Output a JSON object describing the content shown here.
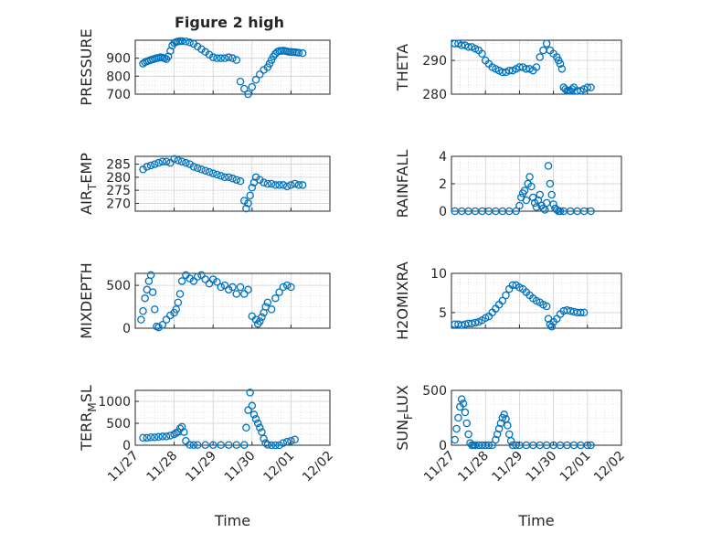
{
  "figure": {
    "title": "Figure 2 high",
    "x_tick_labels": [
      "11/27",
      "11/28",
      "11/29",
      "11/30",
      "12/01",
      "12/02"
    ],
    "xlabel": "Time"
  },
  "colors": {
    "marker": "#0072BD",
    "axis": "#262626",
    "grid": "#d0d0d0"
  },
  "chart_data": [
    {
      "type": "scatter",
      "title": "Figure 2 high",
      "ylabel": "PRESSURE",
      "ylabel_sub": "",
      "ylabel_tail": "",
      "ylim": [
        700,
        1000
      ],
      "yticks": [
        700,
        800,
        900
      ],
      "xticks_visible": false,
      "xlabel": "",
      "x": [
        0.2,
        0.25,
        0.3,
        0.35,
        0.4,
        0.45,
        0.5,
        0.55,
        0.6,
        0.65,
        0.7,
        0.75,
        0.8,
        0.85,
        0.9,
        0.95,
        1.0,
        1.05,
        1.1,
        1.15,
        1.2,
        1.3,
        1.4,
        1.5,
        1.6,
        1.7,
        1.8,
        1.9,
        2.0,
        2.1,
        2.2,
        2.3,
        2.4,
        2.5,
        2.6,
        2.7,
        2.8,
        2.9,
        3.0,
        3.1,
        3.2,
        3.3,
        3.4,
        3.45,
        3.5,
        3.55,
        3.6,
        3.65,
        3.7,
        3.75,
        3.8,
        3.85,
        3.9,
        3.95,
        4.0,
        4.05,
        4.1,
        4.15,
        4.2,
        4.3
      ],
      "y": [
        870,
        878,
        882,
        886,
        890,
        893,
        897,
        900,
        902,
        905,
        903,
        900,
        895,
        910,
        940,
        970,
        985,
        990,
        993,
        995,
        995,
        993,
        988,
        980,
        965,
        950,
        935,
        920,
        905,
        900,
        900,
        900,
        905,
        900,
        890,
        770,
        730,
        700,
        740,
        780,
        810,
        835,
        850,
        870,
        890,
        910,
        925,
        935,
        940,
        940,
        942,
        940,
        938,
        935,
        935,
        934,
        933,
        932,
        930,
        928
      ],
      "note": ""
    },
    {
      "type": "scatter",
      "title": "",
      "ylabel": "THETA",
      "ylabel_sub": "",
      "ylabel_tail": "",
      "ylim": [
        280,
        296
      ],
      "yticks": [
        280,
        290
      ],
      "xticks_visible": false,
      "xlabel": "",
      "x": [
        0.1,
        0.2,
        0.3,
        0.4,
        0.5,
        0.6,
        0.7,
        0.8,
        0.9,
        1.0,
        1.1,
        1.2,
        1.3,
        1.4,
        1.5,
        1.6,
        1.7,
        1.8,
        1.9,
        2.0,
        2.1,
        2.2,
        2.3,
        2.4,
        2.5,
        2.6,
        2.7,
        2.8,
        2.9,
        3.0,
        3.1,
        3.15,
        3.2,
        3.25,
        3.3,
        3.35,
        3.4,
        3.45,
        3.5,
        3.55,
        3.6,
        3.7,
        3.8,
        3.9,
        4.0,
        4.1
      ],
      "y": [
        295,
        295,
        294.5,
        294.5,
        294,
        294,
        293.5,
        293,
        292,
        290,
        289,
        288,
        287.5,
        287,
        286.5,
        286.5,
        287,
        287,
        287.5,
        288,
        288,
        287.5,
        287.5,
        287,
        288,
        291,
        293,
        295,
        293,
        292,
        291,
        290,
        289,
        287.5,
        282,
        281.5,
        281,
        281,
        281,
        281.5,
        282,
        281,
        281,
        281.5,
        282,
        282
      ],
      "note": ""
    },
    {
      "type": "scatter",
      "title": "",
      "ylabel": "AIR",
      "ylabel_sub": "T",
      "ylabel_tail": "EMP",
      "ylim": [
        267,
        288
      ],
      "yticks": [
        270,
        275,
        280,
        285
      ],
      "xticks_visible": false,
      "xlabel": "",
      "x": [
        0.2,
        0.3,
        0.4,
        0.5,
        0.6,
        0.7,
        0.8,
        0.9,
        1.0,
        1.1,
        1.2,
        1.3,
        1.4,
        1.5,
        1.6,
        1.7,
        1.8,
        1.9,
        2.0,
        2.1,
        2.2,
        2.3,
        2.4,
        2.5,
        2.6,
        2.7,
        2.8,
        2.85,
        2.9,
        2.95,
        3.0,
        3.05,
        3.1,
        3.2,
        3.3,
        3.4,
        3.5,
        3.6,
        3.7,
        3.8,
        3.9,
        4.0,
        4.1,
        4.2,
        4.3
      ],
      "y": [
        283,
        284,
        284.5,
        285,
        285.5,
        286,
        286,
        285.5,
        287,
        286.5,
        286,
        285.5,
        285,
        284,
        283.5,
        283,
        282.5,
        282,
        281.5,
        281,
        280.5,
        280,
        280,
        279.5,
        279,
        278.5,
        271,
        268,
        270,
        273,
        276,
        278,
        280,
        279,
        278,
        277.5,
        277.5,
        277,
        277,
        277,
        276.5,
        277,
        277.5,
        277,
        277
      ],
      "note": ""
    },
    {
      "type": "scatter",
      "title": "",
      "ylabel": "RAINFALL",
      "ylabel_sub": "",
      "ylabel_tail": "",
      "ylim": [
        0,
        4
      ],
      "yticks": [
        0,
        2,
        4
      ],
      "xticks_visible": false,
      "xlabel": "",
      "x": [
        0.1,
        0.3,
        0.5,
        0.7,
        0.9,
        1.1,
        1.3,
        1.5,
        1.7,
        1.9,
        2.0,
        2.05,
        2.1,
        2.15,
        2.2,
        2.25,
        2.3,
        2.35,
        2.4,
        2.45,
        2.5,
        2.55,
        2.6,
        2.65,
        2.7,
        2.75,
        2.8,
        2.85,
        2.9,
        2.95,
        3.0,
        3.05,
        3.1,
        3.15,
        3.2,
        3.3,
        3.5,
        3.7,
        3.9,
        4.1
      ],
      "y": [
        0,
        0,
        0,
        0,
        0,
        0,
        0,
        0,
        0,
        0,
        0.4,
        1.0,
        1.3,
        1.5,
        0.8,
        2.0,
        2.5,
        1.8,
        1.0,
        0.6,
        0.3,
        0.8,
        1.2,
        0.4,
        0.2,
        0.1,
        0.6,
        3.3,
        2.0,
        1.2,
        0.5,
        0.2,
        0.1,
        0,
        0,
        0,
        0,
        0,
        0,
        0
      ],
      "note": ""
    },
    {
      "type": "scatter",
      "title": "",
      "ylabel": "MIXDEPTH",
      "ylabel_sub": "",
      "ylabel_tail": "",
      "ylim": [
        0,
        640
      ],
      "yticks": [
        0,
        500
      ],
      "xticks_visible": false,
      "xlabel": "",
      "x": [
        0.15,
        0.2,
        0.25,
        0.3,
        0.35,
        0.4,
        0.45,
        0.5,
        0.55,
        0.6,
        0.7,
        0.8,
        0.9,
        1.0,
        1.05,
        1.1,
        1.15,
        1.2,
        1.3,
        1.4,
        1.5,
        1.6,
        1.7,
        1.8,
        1.9,
        2.0,
        2.1,
        2.2,
        2.3,
        2.4,
        2.5,
        2.6,
        2.7,
        2.8,
        2.9,
        3.0,
        3.1,
        3.15,
        3.2,
        3.25,
        3.3,
        3.35,
        3.4,
        3.5,
        3.6,
        3.7,
        3.8,
        3.9,
        4.0
      ],
      "y": [
        100,
        200,
        350,
        450,
        550,
        620,
        420,
        220,
        20,
        10,
        40,
        100,
        150,
        180,
        220,
        300,
        400,
        550,
        620,
        580,
        550,
        600,
        620,
        570,
        520,
        570,
        540,
        480,
        500,
        450,
        480,
        400,
        480,
        400,
        450,
        140,
        100,
        50,
        80,
        130,
        180,
        250,
        300,
        220,
        350,
        420,
        480,
        500,
        480
      ],
      "note": ""
    },
    {
      "type": "scatter",
      "title": "",
      "ylabel": "H2OMIXRA",
      "ylabel_sub": "",
      "ylabel_tail": "",
      "ylim": [
        3,
        10
      ],
      "yticks": [
        5,
        10
      ],
      "xticks_visible": false,
      "xlabel": "",
      "x": [
        0.1,
        0.2,
        0.3,
        0.4,
        0.5,
        0.6,
        0.7,
        0.8,
        0.9,
        1.0,
        1.1,
        1.2,
        1.3,
        1.4,
        1.5,
        1.6,
        1.7,
        1.8,
        1.9,
        2.0,
        2.1,
        2.2,
        2.3,
        2.4,
        2.5,
        2.6,
        2.7,
        2.8,
        2.85,
        2.9,
        2.95,
        3.0,
        3.1,
        3.2,
        3.3,
        3.4,
        3.5,
        3.6,
        3.7,
        3.8,
        3.9
      ],
      "y": [
        3.5,
        3.5,
        3.4,
        3.5,
        3.6,
        3.6,
        3.7,
        3.8,
        4.0,
        4.3,
        4.5,
        5.0,
        5.5,
        6.0,
        6.5,
        7.2,
        8.0,
        8.5,
        8.5,
        8.2,
        8.0,
        7.6,
        7.2,
        6.8,
        6.5,
        6.3,
        6.0,
        5.8,
        4.2,
        3.5,
        3.2,
        3.8,
        4.2,
        4.8,
        5.2,
        5.3,
        5.2,
        5.1,
        5.0,
        5.0,
        5.0
      ],
      "note": ""
    },
    {
      "type": "scatter",
      "title": "",
      "ylabel": "TERR",
      "ylabel_sub": "M",
      "ylabel_tail": "SL",
      "ylim": [
        0,
        1250
      ],
      "yticks": [
        0,
        500,
        1000
      ],
      "xticks_visible": true,
      "xlabel": "Time",
      "x": [
        0.2,
        0.3,
        0.4,
        0.5,
        0.6,
        0.7,
        0.8,
        0.9,
        1.0,
        1.05,
        1.1,
        1.15,
        1.2,
        1.25,
        1.3,
        1.4,
        1.5,
        1.6,
        1.8,
        2.0,
        2.2,
        2.4,
        2.6,
        2.8,
        2.85,
        2.9,
        2.95,
        3.0,
        3.05,
        3.1,
        3.15,
        3.2,
        3.25,
        3.3,
        3.35,
        3.4,
        3.5,
        3.6,
        3.7,
        3.8,
        3.9,
        4.0,
        4.1
      ],
      "y": [
        170,
        170,
        180,
        180,
        190,
        200,
        200,
        220,
        250,
        280,
        300,
        380,
        420,
        300,
        100,
        10,
        5,
        5,
        5,
        5,
        5,
        5,
        5,
        5,
        400,
        800,
        1200,
        900,
        700,
        600,
        500,
        400,
        300,
        150,
        50,
        10,
        0,
        0,
        0,
        50,
        80,
        100,
        130
      ],
      "note": ""
    },
    {
      "type": "scatter",
      "title": "",
      "ylabel": "SUN",
      "ylabel_sub": "F",
      "ylabel_tail": "LUX",
      "ylim": [
        0,
        500
      ],
      "yticks": [
        0,
        500
      ],
      "xticks_visible": true,
      "xlabel": "Time",
      "x": [
        0.1,
        0.15,
        0.2,
        0.25,
        0.3,
        0.35,
        0.4,
        0.45,
        0.5,
        0.55,
        0.6,
        0.65,
        0.7,
        0.8,
        0.9,
        1.0,
        1.1,
        1.2,
        1.3,
        1.35,
        1.4,
        1.45,
        1.5,
        1.55,
        1.6,
        1.65,
        1.7,
        1.75,
        1.8,
        1.9,
        2.0,
        2.2,
        2.4,
        2.6,
        2.8,
        3.0,
        3.2,
        3.4,
        3.6,
        3.8,
        4.0,
        4.1
      ],
      "y": [
        50,
        150,
        250,
        350,
        420,
        380,
        300,
        200,
        100,
        20,
        0,
        0,
        0,
        0,
        0,
        0,
        0,
        0,
        50,
        100,
        150,
        200,
        250,
        280,
        240,
        180,
        100,
        40,
        0,
        0,
        0,
        0,
        0,
        0,
        0,
        0,
        0,
        0,
        0,
        0,
        0,
        0
      ],
      "note": ""
    }
  ]
}
